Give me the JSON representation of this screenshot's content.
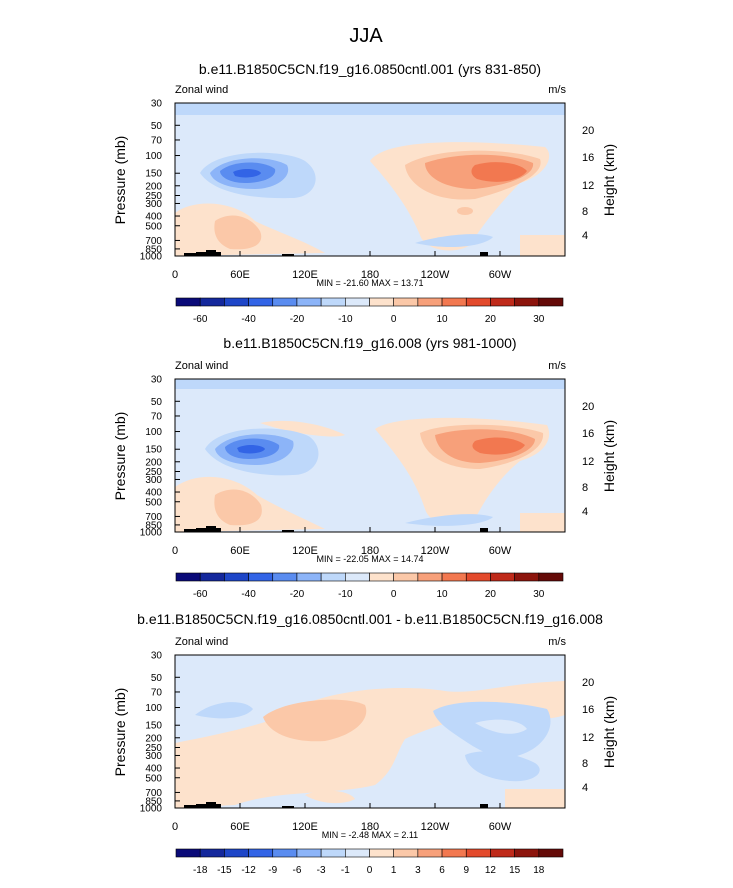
{
  "page_title": "JJA",
  "chart_data": [
    {
      "type": "contour",
      "title": "b.e11.B1850C5CN.f19_g16.0850cntl.001 (yrs 831-850)",
      "left_label": "Zonal wind",
      "right_label": "m/s",
      "xlabel": "",
      "ylabel": "Pressure (mb)",
      "ylabel_right": "Height (km)",
      "x_ticks": [
        "0",
        "60E",
        "120E",
        "180",
        "120W",
        "60W"
      ],
      "xlim": [
        0,
        360
      ],
      "y_ticks": [
        "30",
        "50",
        "70",
        "100",
        "150",
        "200",
        "250",
        "300",
        "400",
        "500",
        "700",
        "850",
        "1000"
      ],
      "y_right_ticks": [
        "20",
        "16",
        "12",
        "8",
        "4"
      ],
      "stats": "MIN = -21.60  MAX = 13.71",
      "min": -21.6,
      "max": 13.71,
      "colorbar_levels": [
        -60,
        -50,
        -40,
        -30,
        -20,
        -15,
        -10,
        -5,
        0,
        5,
        10,
        15,
        20,
        25,
        30
      ],
      "colorbar_labels": [
        "-60",
        "-40",
        "-20",
        "-10",
        "0",
        "10",
        "20",
        "30"
      ]
    },
    {
      "type": "contour",
      "title": "b.e11.B1850C5CN.f19_g16.008 (yrs 981-1000)",
      "left_label": "Zonal wind",
      "right_label": "m/s",
      "xlabel": "",
      "ylabel": "Pressure (mb)",
      "ylabel_right": "Height (km)",
      "x_ticks": [
        "0",
        "60E",
        "120E",
        "180",
        "120W",
        "60W"
      ],
      "xlim": [
        0,
        360
      ],
      "y_ticks": [
        "30",
        "50",
        "70",
        "100",
        "150",
        "200",
        "250",
        "300",
        "400",
        "500",
        "700",
        "850",
        "1000"
      ],
      "y_right_ticks": [
        "20",
        "16",
        "12",
        "8",
        "4"
      ],
      "stats": "MIN = -22.05  MAX = 14.74",
      "min": -22.05,
      "max": 14.74,
      "colorbar_levels": [
        -60,
        -50,
        -40,
        -30,
        -20,
        -15,
        -10,
        -5,
        0,
        5,
        10,
        15,
        20,
        25,
        30
      ],
      "colorbar_labels": [
        "-60",
        "-40",
        "-20",
        "-10",
        "0",
        "10",
        "20",
        "30"
      ]
    },
    {
      "type": "contour",
      "title": "b.e11.B1850C5CN.f19_g16.0850cntl.001 - b.e11.B1850C5CN.f19_g16.008",
      "left_label": "Zonal wind",
      "right_label": "m/s",
      "xlabel": "",
      "ylabel": "Pressure (mb)",
      "ylabel_right": "Height (km)",
      "x_ticks": [
        "0",
        "60E",
        "120E",
        "180",
        "120W",
        "60W"
      ],
      "xlim": [
        0,
        360
      ],
      "y_ticks": [
        "30",
        "50",
        "70",
        "100",
        "150",
        "200",
        "250",
        "300",
        "400",
        "500",
        "700",
        "850",
        "1000"
      ],
      "y_right_ticks": [
        "20",
        "16",
        "12",
        "8",
        "4"
      ],
      "stats": "MIN = -2.48  MAX = 2.11",
      "min": -2.48,
      "max": 2.11,
      "colorbar_levels": [
        -18,
        -15,
        -12,
        -9,
        -6,
        -3,
        -1,
        0,
        1,
        3,
        6,
        9,
        12,
        15,
        18
      ],
      "colorbar_labels": [
        "-18",
        "-15",
        "-12",
        "-9",
        "-6",
        "-3",
        "-1",
        "0",
        "1",
        "3",
        "6",
        "9",
        "12",
        "15",
        "18"
      ]
    }
  ],
  "colors": {
    "c1": "#0a0a78",
    "c2": "#14289c",
    "c3": "#1e46c8",
    "c4": "#3264e6",
    "c5": "#5a8cf0",
    "c6": "#8cb4f8",
    "c7": "#bed8fa",
    "c8": "#dce9fa",
    "c9": "#fde2cc",
    "c10": "#fbc8a8",
    "c11": "#f7a07a",
    "c12": "#f27850",
    "c13": "#e34a2c",
    "c14": "#bf2a1a",
    "c15": "#8c140c",
    "c16": "#640a08",
    "frame": "#000000",
    "land": "#000000"
  }
}
